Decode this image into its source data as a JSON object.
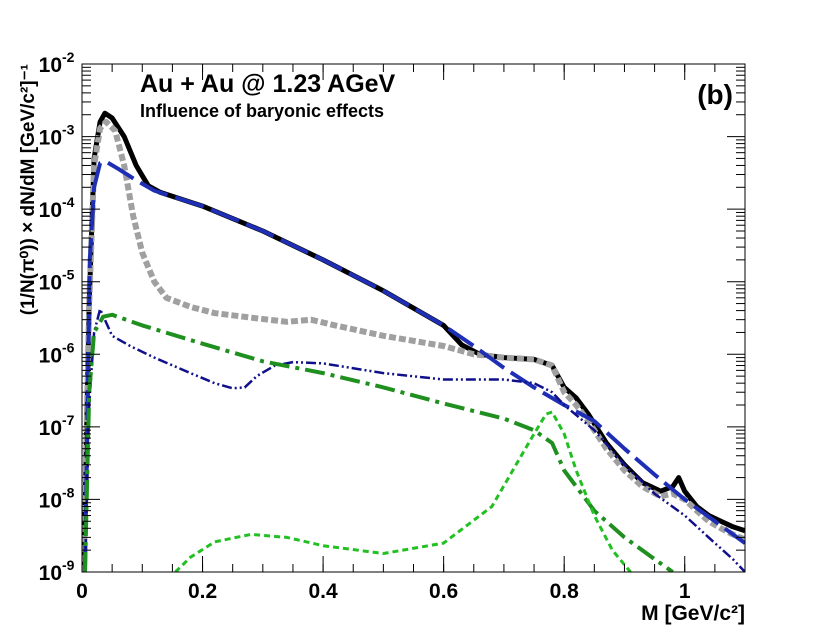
{
  "chart_data": {
    "type": "line",
    "title": "Au + Au @ 1.23 AGeV",
    "subtitle": "Influence of baryonic effects",
    "panel_label": "(b)",
    "xlabel": "M  [GeV/c²]",
    "ylabel": "(1/N(π⁰)) × dN/dM  [GeV/c²]⁻¹",
    "xlim": [
      0,
      1.1
    ],
    "ylim": [
      1e-09,
      0.01
    ],
    "yscale": "log",
    "grid": false,
    "x_ticks": [
      {
        "value": 0,
        "label": "0"
      },
      {
        "value": 0.2,
        "label": "0.2"
      },
      {
        "value": 0.4,
        "label": "0.4"
      },
      {
        "value": 0.6,
        "label": "0.6"
      },
      {
        "value": 0.8,
        "label": "0.8"
      },
      {
        "value": 1.0,
        "label": "1"
      }
    ],
    "y_ticks": [
      {
        "exp": -9,
        "mantissa": "10",
        "power": "-9"
      },
      {
        "exp": -8,
        "mantissa": "10",
        "power": "-8"
      },
      {
        "exp": -7,
        "mantissa": "10",
        "power": "-7"
      },
      {
        "exp": -6,
        "mantissa": "10",
        "power": "-6"
      },
      {
        "exp": -5,
        "mantissa": "10",
        "power": "-5"
      },
      {
        "exp": -4,
        "mantissa": "10",
        "power": "-4"
      },
      {
        "exp": -3,
        "mantissa": "10",
        "power": "-3"
      },
      {
        "exp": -2,
        "mantissa": "10",
        "power": "-2"
      }
    ],
    "series": [
      {
        "name": "total",
        "color": "#000000",
        "dash": "solid",
        "width": 5,
        "points": [
          [
            0.003,
            1e-09
          ],
          [
            0.012,
            5e-06
          ],
          [
            0.02,
            0.0005
          ],
          [
            0.03,
            0.0016
          ],
          [
            0.038,
            0.0021
          ],
          [
            0.05,
            0.0018
          ],
          [
            0.07,
            0.001
          ],
          [
            0.09,
            0.0004
          ],
          [
            0.11,
            0.00021
          ],
          [
            0.13,
            0.00017
          ],
          [
            0.2,
            0.00011
          ],
          [
            0.3,
            5e-05
          ],
          [
            0.4,
            2e-05
          ],
          [
            0.5,
            7.5e-06
          ],
          [
            0.6,
            2.5e-06
          ],
          [
            0.63,
            1.35e-06
          ],
          [
            0.66,
            1e-06
          ],
          [
            0.7,
            9e-07
          ],
          [
            0.75,
            8.5e-07
          ],
          [
            0.78,
            7e-07
          ],
          [
            0.8,
            3.5e-07
          ],
          [
            0.82,
            2.5e-07
          ],
          [
            0.84,
            1.5e-07
          ],
          [
            0.87,
            6e-08
          ],
          [
            0.9,
            3e-08
          ],
          [
            0.93,
            1.7e-08
          ],
          [
            0.96,
            1.3e-08
          ],
          [
            0.98,
            1.5e-08
          ],
          [
            0.99,
            2e-08
          ],
          [
            1.0,
            1.3e-08
          ],
          [
            1.02,
            8e-09
          ],
          [
            1.04,
            6e-09
          ],
          [
            1.06,
            5e-09
          ],
          [
            1.08,
            4.2e-09
          ],
          [
            1.1,
            3.7e-09
          ]
        ]
      },
      {
        "name": "gray-dotted",
        "color": "#a0a0a0",
        "dash": "7,3",
        "width": 6,
        "points": [
          [
            0.003,
            1e-09
          ],
          [
            0.012,
            5e-06
          ],
          [
            0.02,
            0.0004
          ],
          [
            0.03,
            0.0013
          ],
          [
            0.04,
            0.0016
          ],
          [
            0.055,
            0.0012
          ],
          [
            0.07,
            0.0004
          ],
          [
            0.085,
            8e-05
          ],
          [
            0.1,
            2.5e-05
          ],
          [
            0.12,
            1e-05
          ],
          [
            0.14,
            6e-06
          ],
          [
            0.18,
            4.5e-06
          ],
          [
            0.22,
            3.7e-06
          ],
          [
            0.28,
            3.2e-06
          ],
          [
            0.34,
            2.8e-06
          ],
          [
            0.38,
            3e-06
          ],
          [
            0.42,
            2.5e-06
          ],
          [
            0.5,
            1.8e-06
          ],
          [
            0.6,
            1.3e-06
          ],
          [
            0.65,
            1e-06
          ],
          [
            0.7,
            9e-07
          ],
          [
            0.75,
            8.5e-07
          ],
          [
            0.78,
            7e-07
          ],
          [
            0.8,
            3e-07
          ],
          [
            0.82,
            2e-07
          ],
          [
            0.84,
            1.2e-07
          ],
          [
            0.87,
            5e-08
          ],
          [
            0.9,
            2.5e-08
          ],
          [
            0.93,
            1.5e-08
          ],
          [
            0.96,
            1.1e-08
          ],
          [
            0.98,
            1.2e-08
          ],
          [
            1.0,
            1e-08
          ],
          [
            1.02,
            7e-09
          ],
          [
            1.04,
            5e-09
          ],
          [
            1.06,
            4e-09
          ],
          [
            1.08,
            3.3e-09
          ],
          [
            1.1,
            2.8e-09
          ]
        ]
      },
      {
        "name": "blue-long-dash",
        "color": "#1f2fb5",
        "dash": "30,8",
        "width": 4,
        "points": [
          [
            0.005,
            1e-09
          ],
          [
            0.013,
            2e-05
          ],
          [
            0.02,
            0.0002
          ],
          [
            0.03,
            0.00043
          ],
          [
            0.04,
            0.00045
          ],
          [
            0.06,
            0.00036
          ],
          [
            0.09,
            0.00025
          ],
          [
            0.12,
            0.00018
          ],
          [
            0.2,
            0.00011
          ],
          [
            0.3,
            5e-05
          ],
          [
            0.4,
            2e-05
          ],
          [
            0.5,
            7.5e-06
          ],
          [
            0.6,
            2.5e-06
          ],
          [
            0.65,
            1.3e-06
          ],
          [
            0.7,
            6.5e-07
          ],
          [
            0.75,
            3.5e-07
          ],
          [
            0.8,
            2e-07
          ],
          [
            0.85,
            1.2e-07
          ],
          [
            0.9,
            5e-08
          ],
          [
            0.95,
            2.2e-08
          ],
          [
            1.0,
            1e-08
          ],
          [
            1.05,
            5e-09
          ],
          [
            1.1,
            2.5e-09
          ]
        ]
      },
      {
        "name": "navy-dash-dot-dot",
        "color": "#10108a",
        "dash": "10,3,2,3,2,3",
        "width": 2.5,
        "points": [
          [
            0.005,
            1e-09
          ],
          [
            0.012,
            2e-07
          ],
          [
            0.02,
            2e-06
          ],
          [
            0.03,
            4.2e-06
          ],
          [
            0.05,
            1.8e-06
          ],
          [
            0.08,
            1.3e-06
          ],
          [
            0.12,
            9e-07
          ],
          [
            0.18,
            5.5e-07
          ],
          [
            0.22,
            4e-07
          ],
          [
            0.25,
            3.4e-07
          ],
          [
            0.27,
            3.5e-07
          ],
          [
            0.29,
            5e-07
          ],
          [
            0.32,
            7e-07
          ],
          [
            0.35,
            7.8e-07
          ],
          [
            0.4,
            7.5e-07
          ],
          [
            0.5,
            5.5e-07
          ],
          [
            0.6,
            4.5e-07
          ],
          [
            0.7,
            4.5e-07
          ],
          [
            0.75,
            4e-07
          ],
          [
            0.78,
            3e-07
          ],
          [
            0.8,
            2e-07
          ],
          [
            0.85,
            9e-08
          ],
          [
            0.9,
            3e-08
          ],
          [
            0.95,
            1.2e-08
          ],
          [
            1.0,
            6e-09
          ],
          [
            1.05,
            2.5e-09
          ],
          [
            1.08,
            1.5e-09
          ],
          [
            1.1,
            1e-09
          ]
        ]
      },
      {
        "name": "green-dash-dot",
        "color": "#1f8f1f",
        "dash": "20,6,4,6",
        "width": 4,
        "points": [
          [
            0.005,
            1e-09
          ],
          [
            0.012,
            3e-07
          ],
          [
            0.02,
            2e-06
          ],
          [
            0.035,
            3.3e-06
          ],
          [
            0.05,
            3.5e-06
          ],
          [
            0.1,
            2.5e-06
          ],
          [
            0.2,
            1.4e-06
          ],
          [
            0.3,
            8e-07
          ],
          [
            0.4,
            5.5e-07
          ],
          [
            0.5,
            3.5e-07
          ],
          [
            0.6,
            2.1e-07
          ],
          [
            0.7,
            1.3e-07
          ],
          [
            0.75,
            9e-08
          ],
          [
            0.78,
            6e-08
          ],
          [
            0.8,
            2.5e-08
          ],
          [
            0.85,
            7e-09
          ],
          [
            0.9,
            3e-09
          ],
          [
            0.95,
            1.5e-09
          ],
          [
            0.98,
            1e-09
          ]
        ]
      },
      {
        "name": "light-green-dotted",
        "color": "#22c022",
        "dash": "6,4",
        "width": 3,
        "points": [
          [
            0.155,
            1e-09
          ],
          [
            0.18,
            1.6e-09
          ],
          [
            0.22,
            2.6e-09
          ],
          [
            0.28,
            3.3e-09
          ],
          [
            0.34,
            3e-09
          ],
          [
            0.4,
            2.3e-09
          ],
          [
            0.5,
            1.8e-09
          ],
          [
            0.6,
            2.5e-09
          ],
          [
            0.68,
            8e-09
          ],
          [
            0.72,
            3e-08
          ],
          [
            0.75,
            8e-08
          ],
          [
            0.77,
            1.5e-07
          ],
          [
            0.78,
            1.6e-07
          ],
          [
            0.8,
            8e-08
          ],
          [
            0.82,
            2.5e-08
          ],
          [
            0.85,
            6e-09
          ],
          [
            0.88,
            2e-09
          ],
          [
            0.91,
            1e-09
          ]
        ]
      }
    ]
  }
}
